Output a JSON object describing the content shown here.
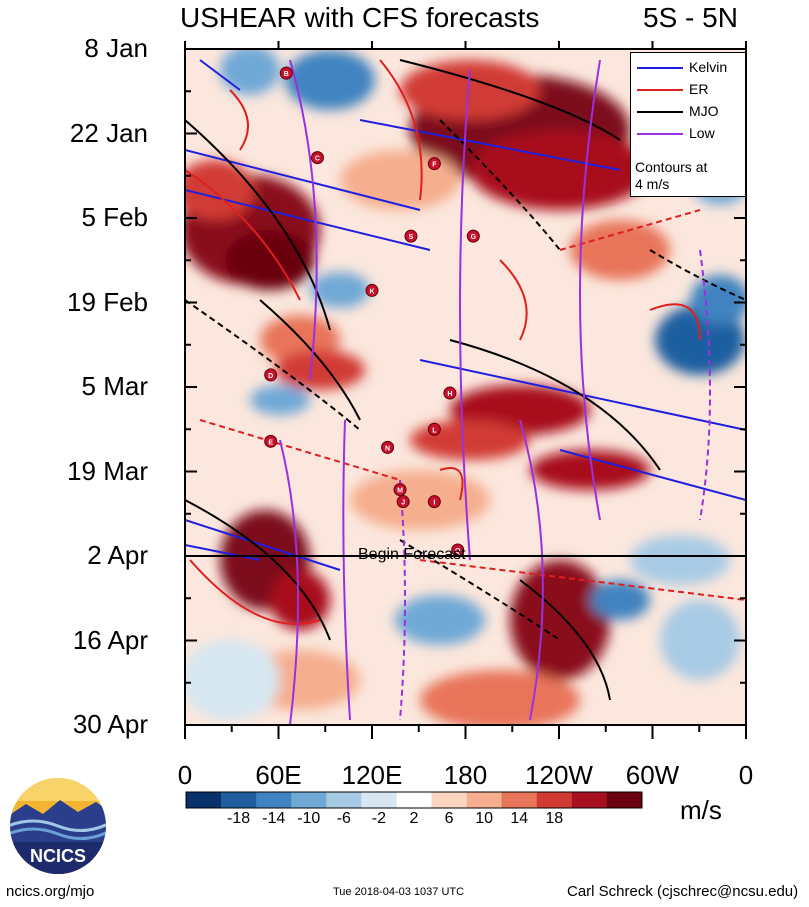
{
  "title": "USHEAR with CFS forecasts",
  "region": "5S - 5N",
  "y_axis": {
    "ticks": [
      "8 Jan",
      "22 Jan",
      "5 Feb",
      "19 Feb",
      "5 Mar",
      "19 Mar",
      "2 Apr",
      "16 Apr",
      "30 Apr"
    ]
  },
  "x_axis": {
    "ticks": [
      "0",
      "60E",
      "120E",
      "180",
      "120W",
      "60W",
      "0"
    ]
  },
  "legend": {
    "items": [
      {
        "label": "Kelvin",
        "color": "#1f1fe0"
      },
      {
        "label": "ER",
        "color": "#e01f1f"
      },
      {
        "label": "MJO",
        "color": "#000000"
      },
      {
        "label": "Low",
        "color": "#9b30e0"
      }
    ],
    "note_line1": "Contours at",
    "note_line2": "4 m/s"
  },
  "forecast_label": "Begin Forecast",
  "colorbar": {
    "unit": "m/s",
    "ticks": [
      "-18",
      "-14",
      "-10",
      "-6",
      "-2",
      "2",
      "6",
      "10",
      "14",
      "18"
    ],
    "colors": [
      "#08306b",
      "#1f5fa0",
      "#3f83c0",
      "#6fa8d6",
      "#a8cbe5",
      "#d6e7f2",
      "#ffffff",
      "#fcd6c0",
      "#f5ae8e",
      "#e8745a",
      "#d13b34",
      "#a80f1e",
      "#6b0010"
    ]
  },
  "logo_text": "NCICS",
  "footer": {
    "left": "ncics.org/mjo",
    "center": "Tue 2018-04-03 1037 UTC",
    "right": "Carl Schreck (cjschrec@ncsu.edu)"
  },
  "chart_data": {
    "type": "heatmap",
    "title": "USHEAR with CFS forecasts",
    "subtitle": "5S - 5N",
    "x_range": [
      "0",
      "0"
    ],
    "y_range": [
      "8 Jan",
      "30 Apr"
    ],
    "forecast_start": "2 Apr",
    "contour_interval": "4 m/s",
    "colorbar_range": [
      -18,
      18
    ],
    "storms": [
      {
        "letter": "B",
        "lon": 65,
        "date": "12 Jan"
      },
      {
        "letter": "C",
        "lon": 85,
        "date": "26 Jan"
      },
      {
        "letter": "F",
        "lon": 160,
        "date": "27 Jan"
      },
      {
        "letter": "S",
        "lon": 145,
        "date": "8 Feb"
      },
      {
        "letter": "G",
        "lon": 185,
        "date": "8 Feb"
      },
      {
        "letter": "K",
        "lon": 120,
        "date": "17 Feb"
      },
      {
        "letter": "D",
        "lon": 55,
        "date": "3 Mar"
      },
      {
        "letter": "H",
        "lon": 170,
        "date": "6 Mar"
      },
      {
        "letter": "L",
        "lon": 160,
        "date": "12 Mar"
      },
      {
        "letter": "E",
        "lon": 55,
        "date": "14 Mar"
      },
      {
        "letter": "N",
        "lon": 130,
        "date": "15 Mar"
      },
      {
        "letter": "M",
        "lon": 138,
        "date": "22 Mar"
      },
      {
        "letter": "J",
        "lon": 140,
        "date": "24 Mar"
      },
      {
        "letter": "I",
        "lon": 160,
        "date": "24 Mar"
      },
      {
        "letter": "Q",
        "lon": 175,
        "date": "1 Apr"
      }
    ]
  }
}
